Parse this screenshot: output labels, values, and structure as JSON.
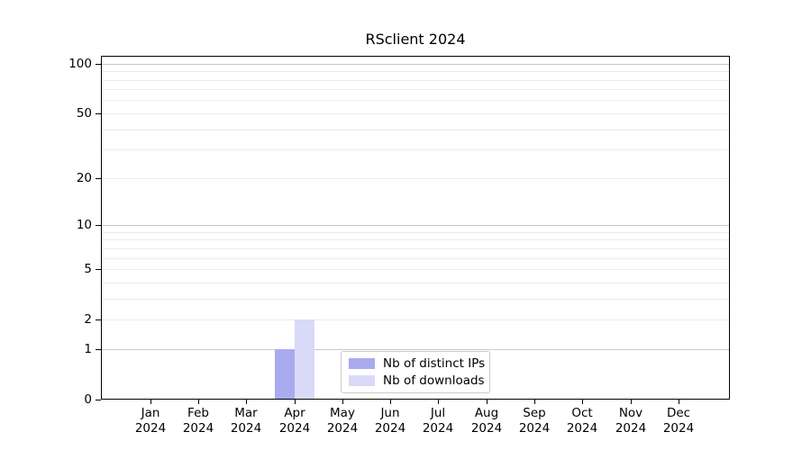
{
  "title": "RSclient 2024",
  "chart_data": {
    "type": "bar",
    "title": "RSclient 2024",
    "x_tick_months": [
      "Jan",
      "Feb",
      "Mar",
      "Apr",
      "May",
      "Jun",
      "Jul",
      "Aug",
      "Sep",
      "Oct",
      "Nov",
      "Dec"
    ],
    "x_tick_year": "2024",
    "categories": [
      "Jan 2024",
      "Feb 2024",
      "Mar 2024",
      "Apr 2024",
      "May 2024",
      "Jun 2024",
      "Jul 2024",
      "Aug 2024",
      "Sep 2024",
      "Oct 2024",
      "Nov 2024",
      "Dec 2024"
    ],
    "series": [
      {
        "name": "Nb of distinct IPs",
        "color": "#aaaaf0",
        "values": [
          0,
          0,
          0,
          1,
          0,
          0,
          0,
          0,
          0,
          0,
          0,
          0
        ]
      },
      {
        "name": "Nb of downloads",
        "color": "#d9d9f8",
        "values": [
          0,
          0,
          0,
          2,
          0,
          0,
          0,
          0,
          0,
          0,
          0,
          0
        ]
      }
    ],
    "y_scale": "log1p",
    "y_ticks": [
      0,
      1,
      2,
      5,
      10,
      20,
      50,
      100
    ],
    "y_major_gridlines": [
      1,
      10,
      100
    ],
    "y_minor_gridlines": [
      2,
      3,
      4,
      5,
      6,
      7,
      8,
      9,
      20,
      30,
      40,
      50,
      60,
      70,
      80,
      90
    ],
    "ylim": [
      0,
      111
    ],
    "grid": "horizontal",
    "legend_position": "lower center inside",
    "colors": {
      "axis": "#000000",
      "major_grid": "#c9c9c9",
      "minor_grid": "#ebebeb",
      "background": "#ffffff",
      "legend_border": "#cbcbcb"
    }
  }
}
